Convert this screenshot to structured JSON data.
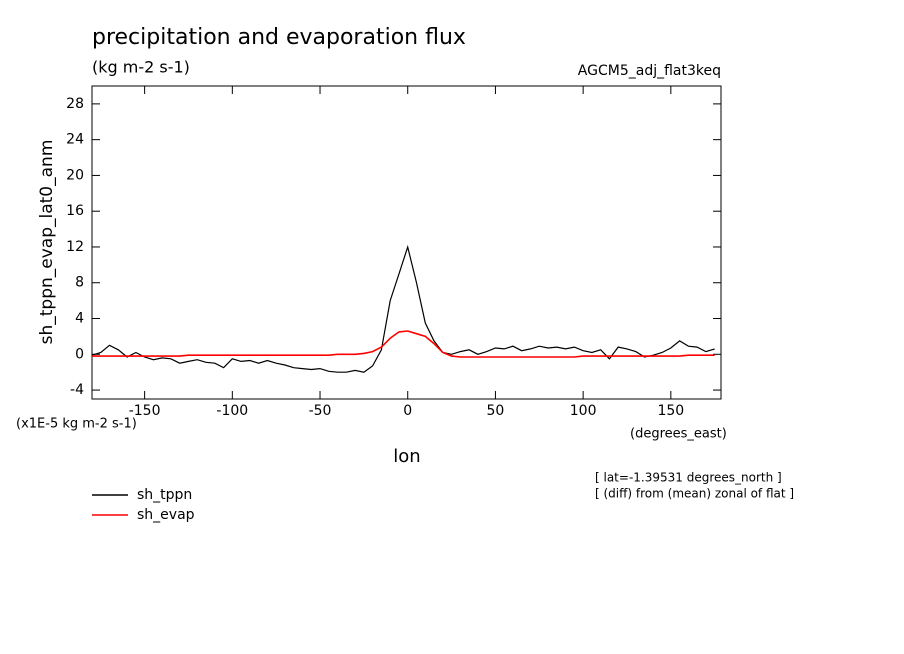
{
  "chart_data": {
    "type": "line",
    "title": "precipitation and evaporation flux",
    "subtitle": "(kg m-2 s-1)",
    "dataset": "AGCM5_adj_flat3keq",
    "ylabel": "sh_tppn_evap_lat0_anm",
    "xlabel": "lon",
    "yunits": "(x1E-5 kg m-2 s-1)",
    "xunits": "(degrees_east)",
    "notes": [
      "[ lat=-1.39531 degrees_north ]",
      "[ (diff) from (mean) zonal of flat ]"
    ],
    "x": [
      -180,
      -175,
      -170,
      -165,
      -160,
      -155,
      -150,
      -145,
      -140,
      -135,
      -130,
      -125,
      -120,
      -115,
      -110,
      -105,
      -100,
      -95,
      -90,
      -85,
      -80,
      -75,
      -70,
      -65,
      -60,
      -55,
      -50,
      -45,
      -40,
      -35,
      -30,
      -25,
      -20,
      -15,
      -10,
      -5,
      0,
      5,
      10,
      15,
      20,
      25,
      30,
      35,
      40,
      45,
      50,
      55,
      60,
      65,
      70,
      75,
      80,
      85,
      90,
      95,
      100,
      105,
      110,
      115,
      120,
      125,
      130,
      135,
      140,
      145,
      150,
      155,
      160,
      165,
      170,
      175
    ],
    "series": [
      {
        "name": "sh_tppn",
        "color": "#000000",
        "values": [
          -0.1,
          0.2,
          1.0,
          0.5,
          -0.3,
          0.2,
          -0.3,
          -0.6,
          -0.4,
          -0.5,
          -1.0,
          -0.8,
          -0.6,
          -0.9,
          -1.0,
          -1.5,
          -0.5,
          -0.8,
          -0.7,
          -1.0,
          -0.7,
          -1.0,
          -1.2,
          -1.5,
          -1.6,
          -1.7,
          -1.6,
          -1.9,
          -2.0,
          -2.0,
          -1.8,
          -2.0,
          -1.3,
          0.5,
          6.0,
          9.0,
          12.0,
          8.0,
          3.5,
          1.5,
          0.2,
          0.0,
          0.3,
          0.5,
          0.0,
          0.3,
          0.7,
          0.6,
          0.9,
          0.4,
          0.6,
          0.9,
          0.7,
          0.8,
          0.6,
          0.8,
          0.4,
          0.2,
          0.5,
          -0.5,
          0.8,
          0.6,
          0.3,
          -0.3,
          -0.1,
          0.2,
          0.7,
          1.5,
          0.9,
          0.8,
          0.3,
          0.6
        ]
      },
      {
        "name": "sh_evap",
        "color": "#ff0000",
        "values": [
          -0.2,
          -0.2,
          -0.2,
          -0.2,
          -0.2,
          -0.2,
          -0.2,
          -0.2,
          -0.2,
          -0.2,
          -0.2,
          -0.1,
          -0.1,
          -0.1,
          -0.1,
          -0.1,
          -0.1,
          -0.1,
          -0.1,
          -0.1,
          -0.1,
          -0.1,
          -0.1,
          -0.1,
          -0.1,
          -0.1,
          -0.1,
          -0.1,
          0.0,
          0.0,
          0.0,
          0.1,
          0.3,
          0.8,
          1.8,
          2.5,
          2.6,
          2.3,
          2.0,
          1.2,
          0.2,
          -0.2,
          -0.3,
          -0.3,
          -0.3,
          -0.3,
          -0.3,
          -0.3,
          -0.3,
          -0.3,
          -0.3,
          -0.3,
          -0.3,
          -0.3,
          -0.3,
          -0.3,
          -0.2,
          -0.2,
          -0.2,
          -0.2,
          -0.2,
          -0.2,
          -0.2,
          -0.2,
          -0.2,
          -0.2,
          -0.2,
          -0.2,
          -0.1,
          -0.1,
          -0.1,
          -0.1
        ]
      }
    ],
    "xlim": [
      -180,
      178.6
    ],
    "ylim": [
      -5,
      30
    ],
    "xticks": [
      -150,
      -100,
      -50,
      0,
      50,
      100,
      150
    ],
    "yticks": [
      -4,
      0,
      4,
      8,
      12,
      16,
      20,
      24,
      28
    ]
  }
}
